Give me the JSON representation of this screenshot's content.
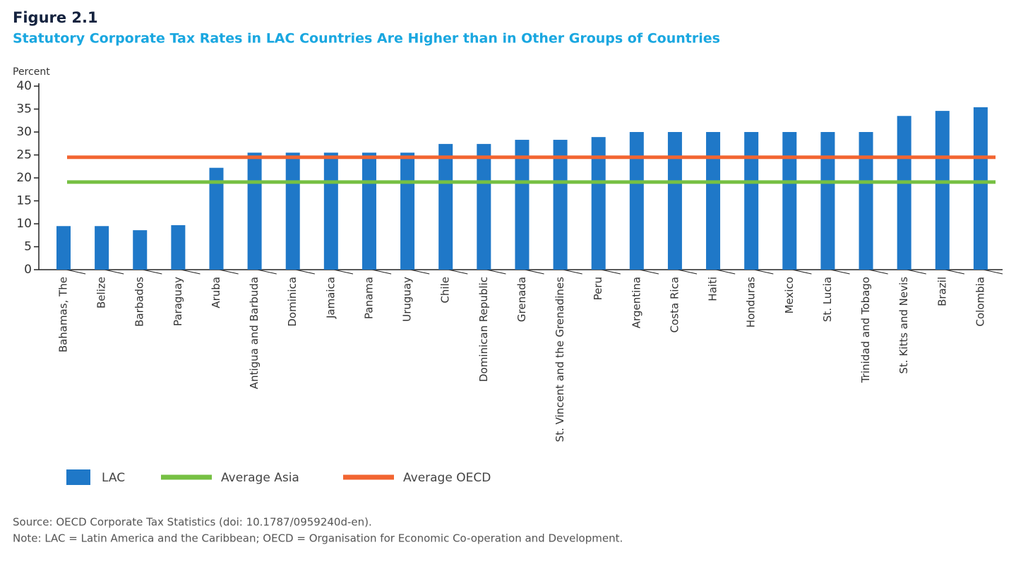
{
  "chart_data": {
    "type": "bar",
    "figure_label": "Figure 2.1",
    "title": "Statutory Corporate Tax Rates in LAC Countries Are Higher than in Other Groups of Countries",
    "y_label": "Percent",
    "categories": [
      "Bahamas, The",
      "Belize",
      "Barbados",
      "Paraguay",
      "Aruba",
      "Antigua and Barbuda",
      "Dominica",
      "Jamaica",
      "Panama",
      "Uruguay",
      "Chile",
      "Dominican Republic",
      "Grenada",
      "St. Vincent and the Grenadines",
      "Peru",
      "Argentina",
      "Costa Rica",
      "Haiti",
      "Honduras",
      "Mexico",
      "St. Lucia",
      "Trinidad and Tobago",
      "St. Kitts and Nevis",
      "Brazil",
      "Colombia"
    ],
    "series": [
      {
        "name": "LAC",
        "color": "#1f78c8",
        "values": [
          9.5,
          9.5,
          8.6,
          9.7,
          22.2,
          25.5,
          25.5,
          25.5,
          25.5,
          25.5,
          27.4,
          27.4,
          28.3,
          28.3,
          28.9,
          30,
          30,
          30,
          30,
          30,
          30,
          30,
          33.5,
          34.6,
          35.4
        ]
      }
    ],
    "reference_lines": [
      {
        "name": "Average Asia",
        "color": "#76c043",
        "value": 19.1
      },
      {
        "name": "Average OECD",
        "color": "#f26531",
        "value": 24.5
      }
    ],
    "ylim": [
      0,
      40
    ],
    "yticks": [
      0,
      5,
      10,
      15,
      20,
      25,
      30,
      35,
      40
    ],
    "source": "Source: OECD Corporate Tax Statistics (doi: 10.1787/0959240d-en).",
    "note": "Note: LAC = Latin America and the Caribbean; OECD = Organisation for Economic Co-operation and Development."
  }
}
